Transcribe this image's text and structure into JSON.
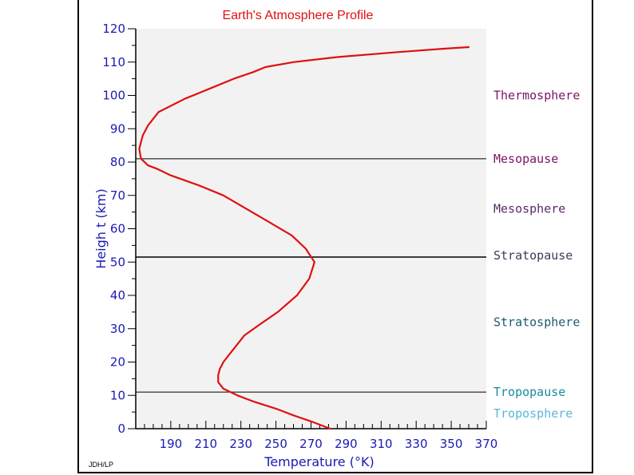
{
  "chart_data": {
    "type": "line",
    "title": "Earth's Atmosphere Profile",
    "xlabel": "Temperature (°K)",
    "ylabel": "Heigh t (km)",
    "xlim": [
      170,
      370
    ],
    "ylim": [
      0,
      120
    ],
    "x_ticks": [
      190,
      210,
      230,
      250,
      270,
      290,
      310,
      330,
      350,
      370
    ],
    "y_ticks": [
      0,
      10,
      20,
      30,
      40,
      50,
      60,
      70,
      80,
      90,
      100,
      110,
      120
    ],
    "grid": false,
    "series": [
      {
        "color": "#e01010",
        "x": [
          281,
          271,
          260,
          250,
          238,
          228,
          220,
          217,
          217,
          218,
          220,
          223,
          226,
          229,
          232,
          240,
          251,
          262,
          269,
          272,
          267,
          259,
          246,
          233,
          220,
          206,
          190,
          182,
          177,
          173,
          172,
          174,
          177,
          183,
          198,
          212,
          226,
          237,
          244,
          260,
          285,
          320,
          345,
          360
        ],
        "y": [
          0,
          2,
          4,
          6,
          8,
          10,
          12,
          14,
          16,
          18,
          20,
          22,
          24,
          26,
          28,
          31,
          35,
          40,
          45,
          50,
          54,
          58,
          62,
          66,
          70,
          73,
          76,
          78,
          79,
          81,
          84,
          88,
          91,
          95,
          99,
          102,
          105,
          107,
          108.5,
          110,
          111.5,
          113,
          114,
          114.5
        ]
      }
    ],
    "levels": [
      {
        "name": "Mesopause",
        "km": 81
      },
      {
        "name": "Stratopause",
        "km": 51.5
      },
      {
        "name": "Tropopause",
        "km": 11
      }
    ],
    "annotations": [
      {
        "text": "Thermosphere",
        "km": 100,
        "color": "#7a1464"
      },
      {
        "text": "Mesopause",
        "km": 81,
        "color": "#7a1464"
      },
      {
        "text": "Mesosphere",
        "km": 66,
        "color": "#5a2a6a"
      },
      {
        "text": "Stratopause",
        "km": 52,
        "color": "#3c3c5a"
      },
      {
        "text": "Stratosphere",
        "km": 32,
        "color": "#1e5a6e"
      },
      {
        "text": "Tropopause",
        "km": 11,
        "color": "#1a8aa0"
      },
      {
        "text": "Troposphere",
        "km": 4.5,
        "color": "#5ab8d8"
      }
    ],
    "credit": "JDH/LP"
  }
}
